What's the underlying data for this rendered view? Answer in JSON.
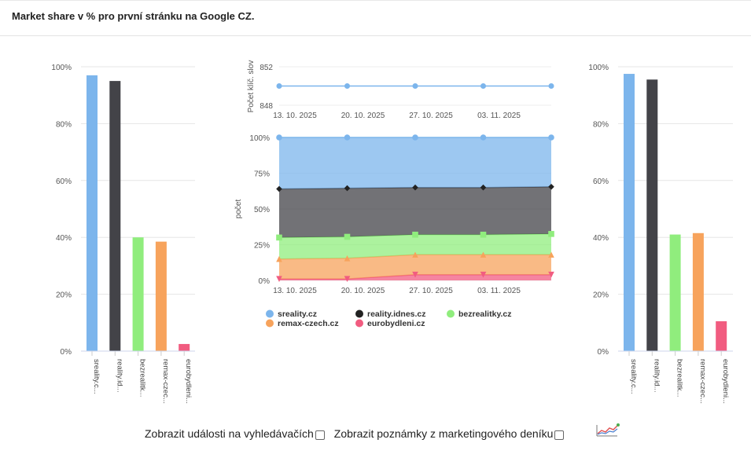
{
  "page": {
    "title": "Market share v % pro první stránku na Google CZ."
  },
  "footer": {
    "events_label": "Zobrazit události na vyhledávačích",
    "notes_label": "Zobrazit poznámky z marketingového deníku"
  },
  "icons": {
    "chart_toggle": "line-chart-icon",
    "checkbox": "checkbox-icon"
  },
  "chart_data": [
    {
      "type": "bar",
      "categories": [
        "sreality.c...",
        "reality.id...",
        "bezrealitk...",
        "remax-czec...",
        "eurobydleni..."
      ],
      "values": [
        97,
        95,
        40,
        38.5,
        2.5
      ],
      "colors": [
        "#7cb5ec",
        "#434348",
        "#90ed7d",
        "#f7a35c",
        "#f15c80"
      ],
      "ylim": [
        0,
        100
      ],
      "yticks": [
        "0%",
        "20%",
        "40%",
        "60%",
        "80%",
        "100%"
      ],
      "legend": "none"
    },
    {
      "type": "line",
      "ylabel": "Počet klíč. slov",
      "x": [
        "13. 10. 2025",
        "20. 10. 2025",
        "27. 10. 2025",
        "03. 11. 2025",
        ""
      ],
      "xticks": [
        "13. 10. 2025",
        "20. 10. 2025",
        "27. 10. 2025",
        "03. 11. 2025"
      ],
      "values": [
        850,
        850,
        850,
        850,
        850
      ],
      "ylim": [
        848,
        852
      ],
      "yticks": [
        "848",
        "852"
      ],
      "color": "#7cb5ec"
    },
    {
      "type": "area",
      "stacking": "percent",
      "ylabel": "počet",
      "x": [
        "13. 10. 2025",
        "20. 10. 2025",
        "27. 10. 2025",
        "03. 11. 2025",
        ""
      ],
      "xticks": [
        "13. 10. 2025",
        "20. 10. 2025",
        "27. 10. 2025",
        "03. 11. 2025"
      ],
      "ylim": [
        0,
        100
      ],
      "yticks": [
        "0%",
        "25%",
        "50%",
        "75%",
        "100%"
      ],
      "series": [
        {
          "name": "eurobydleni.cz",
          "values": [
            1,
            1,
            4,
            4,
            4
          ],
          "color": "#f15c80",
          "marker": "triangle-down"
        },
        {
          "name": "remax-czech.cz",
          "values": [
            14,
            14.5,
            14,
            14,
            14
          ],
          "color": "#f7a35c",
          "marker": "triangle"
        },
        {
          "name": "bezrealitky.cz",
          "values": [
            15,
            15,
            14,
            14,
            14.5
          ],
          "color": "#90ed7d",
          "marker": "square"
        },
        {
          "name": "reality.idnes.cz",
          "values": [
            34,
            34,
            33,
            33,
            33
          ],
          "color": "#434348",
          "marker": "diamond"
        },
        {
          "name": "sreality.cz",
          "values": [
            36,
            35.5,
            35,
            35,
            34.5
          ],
          "color": "#7cb5ec",
          "marker": "circle"
        }
      ],
      "legend": {
        "placement": "bottom",
        "items": [
          "sreality.cz",
          "reality.idnes.cz",
          "bezrealitky.cz",
          "remax-czech.cz",
          "eurobydleni.cz"
        ]
      }
    },
    {
      "type": "bar",
      "categories": [
        "sreality.c...",
        "reality.id...",
        "bezrealitk...",
        "remax-czec...",
        "eurobydleni..."
      ],
      "values": [
        97.5,
        95.5,
        41,
        41.5,
        10.5
      ],
      "colors": [
        "#7cb5ec",
        "#434348",
        "#90ed7d",
        "#f7a35c",
        "#f15c80"
      ],
      "ylim": [
        0,
        100
      ],
      "yticks": [
        "0%",
        "20%",
        "40%",
        "60%",
        "80%",
        "100%"
      ],
      "legend": "none"
    }
  ]
}
